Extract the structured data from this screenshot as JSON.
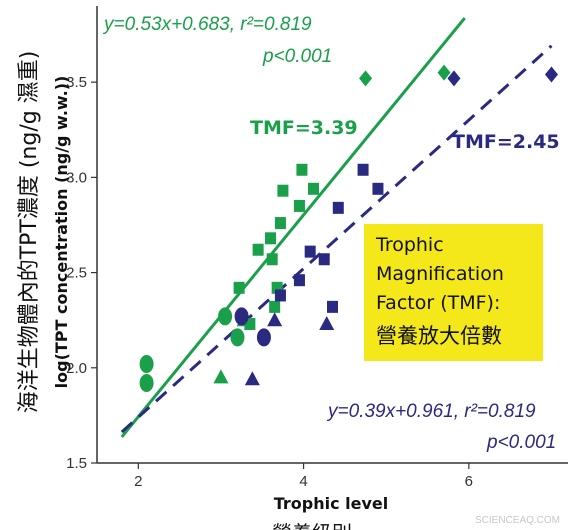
{
  "chart_data": {
    "type": "scatter",
    "xlabel": "Trophic level",
    "ylabel_zh": "海洋生物體內的TPT濃度 (ng/g 濕重)",
    "ylabel_en": "log(TPT concentration (ng/g w.w.))",
    "xlim": [
      1.5,
      7.2
    ],
    "ylim": [
      1.5,
      3.9
    ],
    "xticks": [
      2,
      4,
      6
    ],
    "yticks": [
      1.5,
      2.0,
      2.5,
      3.0,
      3.5
    ],
    "xtick_labels": [
      "2",
      "4",
      "6"
    ],
    "ytick_labels": [
      "1.5",
      "2.0",
      "2.5",
      "3.0",
      "3.5"
    ],
    "grid": false,
    "series": [
      {
        "color": "#1aa04a",
        "line": {
          "slope": 0.53,
          "intercept": 0.683,
          "x_range": [
            1.8,
            5.95
          ],
          "style": "solid"
        },
        "equation": "y=0.53x+0.683, r²=0.819",
        "p_value": "p<0.001",
        "tmf_label": "TMF=3.39",
        "points": [
          {
            "x": 2.1,
            "y": 2.02,
            "shape": "circle"
          },
          {
            "x": 2.1,
            "y": 1.92,
            "shape": "circle"
          },
          {
            "x": 3.05,
            "y": 2.27,
            "shape": "circle"
          },
          {
            "x": 3.2,
            "y": 2.16,
            "shape": "circle"
          },
          {
            "x": 3.0,
            "y": 1.95,
            "shape": "triangle"
          },
          {
            "x": 3.28,
            "y": 2.25,
            "shape": "triangle"
          },
          {
            "x": 3.35,
            "y": 2.23,
            "shape": "square"
          },
          {
            "x": 3.22,
            "y": 2.42,
            "shape": "square"
          },
          {
            "x": 3.45,
            "y": 2.62,
            "shape": "square"
          },
          {
            "x": 3.6,
            "y": 2.68,
            "shape": "square"
          },
          {
            "x": 3.62,
            "y": 2.57,
            "shape": "square"
          },
          {
            "x": 3.65,
            "y": 2.32,
            "shape": "square"
          },
          {
            "x": 3.68,
            "y": 2.42,
            "shape": "square"
          },
          {
            "x": 3.72,
            "y": 2.76,
            "shape": "square"
          },
          {
            "x": 3.75,
            "y": 2.93,
            "shape": "square"
          },
          {
            "x": 3.95,
            "y": 2.85,
            "shape": "square"
          },
          {
            "x": 3.98,
            "y": 3.04,
            "shape": "square"
          },
          {
            "x": 4.12,
            "y": 2.94,
            "shape": "square"
          },
          {
            "x": 4.75,
            "y": 3.52,
            "shape": "diamond"
          },
          {
            "x": 5.7,
            "y": 3.55,
            "shape": "diamond"
          }
        ]
      },
      {
        "color": "#2a2a80",
        "line": {
          "slope": 0.39,
          "intercept": 0.961,
          "x_range": [
            1.8,
            7.0
          ],
          "style": "dashed"
        },
        "equation": "y=0.39x+0.961, r²=0.819",
        "p_value": "p<0.001",
        "tmf_label": "TMF=2.45",
        "points": [
          {
            "x": 3.25,
            "y": 2.27,
            "shape": "circle"
          },
          {
            "x": 3.52,
            "y": 2.16,
            "shape": "circle"
          },
          {
            "x": 3.38,
            "y": 1.94,
            "shape": "triangle"
          },
          {
            "x": 3.65,
            "y": 2.25,
            "shape": "triangle"
          },
          {
            "x": 4.28,
            "y": 2.23,
            "shape": "triangle"
          },
          {
            "x": 3.72,
            "y": 2.38,
            "shape": "square"
          },
          {
            "x": 3.95,
            "y": 2.46,
            "shape": "square"
          },
          {
            "x": 4.08,
            "y": 2.61,
            "shape": "square"
          },
          {
            "x": 4.25,
            "y": 2.57,
            "shape": "square"
          },
          {
            "x": 4.35,
            "y": 2.32,
            "shape": "square"
          },
          {
            "x": 4.42,
            "y": 2.84,
            "shape": "square"
          },
          {
            "x": 4.72,
            "y": 3.04,
            "shape": "square"
          },
          {
            "x": 4.9,
            "y": 2.94,
            "shape": "square"
          },
          {
            "x": 5.82,
            "y": 3.52,
            "shape": "diamond"
          },
          {
            "x": 7.0,
            "y": 3.54,
            "shape": "diamond"
          }
        ]
      }
    ],
    "callout": {
      "title": "Trophic Magnification Factor (TMF):",
      "title_lines": [
        "Trophic",
        "Magnification",
        "Factor (TMF):"
      ],
      "subtitle": "營養放大倍數",
      "background": "#f5e81a"
    }
  },
  "footer_caption_partial": "營養級別",
  "watermark": "SCIENCEAQ.COM"
}
